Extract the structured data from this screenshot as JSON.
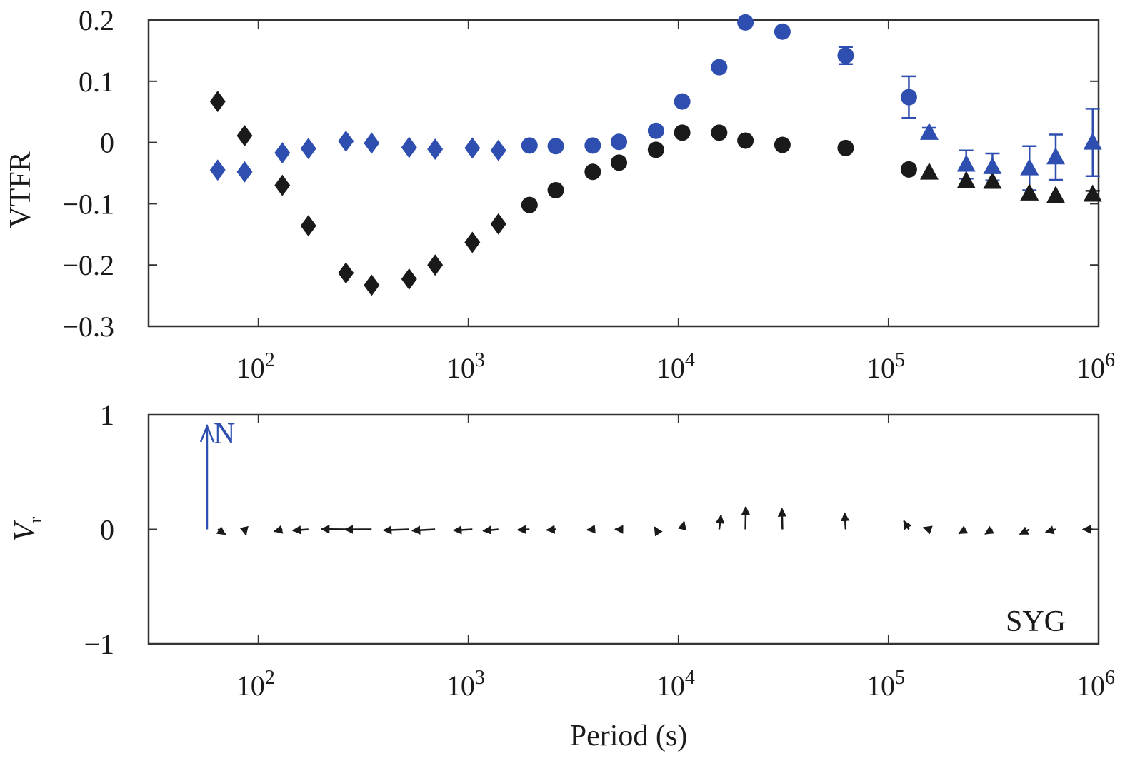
{
  "colors": {
    "real": "#1a1a1a",
    "imag": "#2f4fb0",
    "axis": "#333333"
  },
  "chart_data": [
    {
      "type": "scatter",
      "xscale": "log",
      "xlim": [
        30,
        1000000
      ],
      "ylim": [
        -0.3,
        0.2
      ],
      "ylabel": "VTFR",
      "xlabel": "",
      "grid": false,
      "xticks": [
        100,
        1000,
        10000,
        100000,
        1000000
      ],
      "xtick_labels": [
        {
          "base": "10",
          "exp": "2"
        },
        {
          "base": "10",
          "exp": "3"
        },
        {
          "base": "10",
          "exp": "4"
        },
        {
          "base": "10",
          "exp": "5"
        },
        {
          "base": "10",
          "exp": "6"
        }
      ],
      "yticks": [
        0.2,
        0.1,
        0,
        -0.1,
        -0.2,
        -0.3
      ],
      "ytick_labels": [
        "0.2",
        "0.1",
        "0",
        "−0.1",
        "−0.2",
        "−0.3"
      ],
      "series": [
        {
          "marker": "diamond",
          "color": "#1a1a1a",
          "x": [
            64,
            86,
            130,
            173,
            261,
            346,
            522,
            694,
            1044,
            1389
          ],
          "y": [
            0.067,
            0.011,
            -0.07,
            -0.136,
            -0.213,
            -0.233,
            -0.223,
            -0.2,
            -0.163,
            -0.133
          ]
        },
        {
          "marker": "diamond",
          "color": "#2f4fb0",
          "x": [
            64,
            86,
            130,
            173,
            261,
            346,
            522,
            694,
            1044,
            1389
          ],
          "y": [
            -0.045,
            -0.048,
            -0.017,
            -0.01,
            0.002,
            -0.001,
            -0.008,
            -0.011,
            -0.009,
            -0.013
          ]
        },
        {
          "marker": "circle",
          "color": "#1a1a1a",
          "x": [
            1953,
            2604,
            3906,
            5208,
            7812,
            10417,
            15625,
            20833,
            31250,
            62500,
            125000
          ],
          "y": [
            -0.102,
            -0.078,
            -0.048,
            -0.033,
            -0.012,
            0.016,
            0.016,
            0.003,
            -0.004,
            -0.009,
            -0.044
          ],
          "yerr": [
            0,
            0,
            0,
            0,
            0,
            0,
            0,
            0,
            0.004,
            0.005,
            0.006
          ]
        },
        {
          "marker": "circle",
          "color": "#2f4fb0",
          "x": [
            1953,
            2604,
            3906,
            5208,
            7812,
            10417,
            15625,
            20833,
            31250,
            62500,
            125000
          ],
          "y": [
            -0.005,
            -0.006,
            -0.005,
            0.001,
            0.019,
            0.067,
            0.123,
            0.196,
            0.181,
            0.142,
            0.074
          ],
          "yerr": [
            0,
            0,
            0,
            0,
            0,
            0,
            0.003,
            0,
            0,
            0.014,
            0.034
          ]
        },
        {
          "marker": "triangle",
          "color": "#1a1a1a",
          "x": [
            156250,
            234375,
            312500,
            468750,
            625000,
            937500
          ],
          "y": [
            -0.049,
            -0.063,
            -0.064,
            -0.083,
            -0.087,
            -0.085
          ],
          "yerr": [
            0,
            0,
            0,
            0,
            0,
            0.006
          ]
        },
        {
          "marker": "triangle",
          "color": "#2f4fb0",
          "x": [
            156250,
            234375,
            312500,
            468750,
            625000,
            937500
          ],
          "y": [
            0.016,
            -0.036,
            -0.04,
            -0.042,
            -0.024,
            0.0
          ],
          "yerr": [
            0.008,
            0.023,
            0.022,
            0.036,
            0.037,
            0.055
          ]
        }
      ]
    },
    {
      "type": "vector",
      "xscale": "log",
      "xlim": [
        30,
        1000000
      ],
      "ylim": [
        -1,
        1
      ],
      "ylabel": "V",
      "ylabel_sub": "r",
      "xlabel": "Period (s)",
      "xticks": [
        100,
        1000,
        10000,
        100000,
        1000000
      ],
      "xtick_labels": [
        {
          "base": "10",
          "exp": "2"
        },
        {
          "base": "10",
          "exp": "3"
        },
        {
          "base": "10",
          "exp": "4"
        },
        {
          "base": "10",
          "exp": "5"
        },
        {
          "base": "10",
          "exp": "6"
        }
      ],
      "yticks": [
        1,
        0,
        -1
      ],
      "ytick_labels": [
        "1",
        "0",
        "−1"
      ],
      "annotation": "SYG",
      "north_label": "N",
      "north_arrow": {
        "x": 57,
        "length": 0.9
      },
      "arrows": [
        {
          "x": 64,
          "u": 0.067,
          "v": -0.045
        },
        {
          "x": 86,
          "u": 0.011,
          "v": -0.048
        },
        {
          "x": 130,
          "u": -0.07,
          "v": -0.017
        },
        {
          "x": 173,
          "u": -0.136,
          "v": -0.01
        },
        {
          "x": 261,
          "u": -0.213,
          "v": 0.002
        },
        {
          "x": 346,
          "u": -0.233,
          "v": -0.001
        },
        {
          "x": 522,
          "u": -0.223,
          "v": -0.008
        },
        {
          "x": 694,
          "u": -0.2,
          "v": -0.011
        },
        {
          "x": 1044,
          "u": -0.163,
          "v": -0.009
        },
        {
          "x": 1389,
          "u": -0.133,
          "v": -0.013
        },
        {
          "x": 1953,
          "u": -0.102,
          "v": -0.005
        },
        {
          "x": 2604,
          "u": -0.078,
          "v": -0.006
        },
        {
          "x": 3906,
          "u": -0.048,
          "v": -0.005
        },
        {
          "x": 5208,
          "u": -0.033,
          "v": 0.001
        },
        {
          "x": 7812,
          "u": -0.012,
          "v": 0.019
        },
        {
          "x": 10417,
          "u": 0.016,
          "v": 0.067
        },
        {
          "x": 15625,
          "u": 0.016,
          "v": 0.123
        },
        {
          "x": 20833,
          "u": 0.003,
          "v": 0.196
        },
        {
          "x": 31250,
          "u": -0.004,
          "v": 0.181
        },
        {
          "x": 62500,
          "u": -0.009,
          "v": 0.142
        },
        {
          "x": 125000,
          "u": -0.044,
          "v": 0.074
        },
        {
          "x": 156250,
          "u": -0.049,
          "v": 0.016
        },
        {
          "x": 234375,
          "u": -0.063,
          "v": -0.036
        },
        {
          "x": 312500,
          "u": -0.064,
          "v": -0.04
        },
        {
          "x": 468750,
          "u": -0.083,
          "v": -0.042
        },
        {
          "x": 625000,
          "u": -0.087,
          "v": -0.024
        },
        {
          "x": 937500,
          "u": -0.085,
          "v": 0.0
        }
      ]
    }
  ]
}
